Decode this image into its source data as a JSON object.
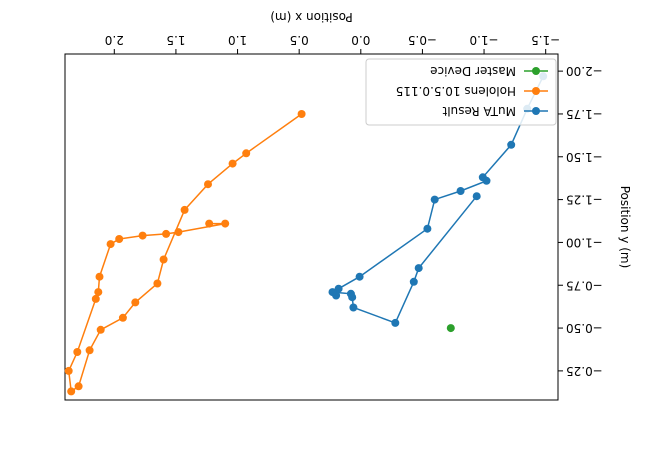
{
  "chart_data": {
    "type": "scatter",
    "title": "",
    "xlabel": "Position x (m)",
    "ylabel": "Position y (m)",
    "rotated_180": true,
    "xlim": [
      -1.6,
      2.4
    ],
    "ylim": [
      -2.1,
      -0.08
    ],
    "x_ticks": [
      -1.5,
      -1.0,
      -0.5,
      0.0,
      0.5,
      1.0,
      1.5,
      2.0
    ],
    "x_tick_labels": [
      "−1.5",
      "−1.0",
      "−0.5",
      "0.0",
      "0.5",
      "1.0",
      "1.5",
      "2.0"
    ],
    "y_ticks": [
      -2.0,
      -1.75,
      -1.5,
      -1.25,
      -1.0,
      -0.75,
      -0.5,
      -0.25
    ],
    "y_tick_labels": [
      "−2.00",
      "−1.75",
      "−1.50",
      "−1.25",
      "−1.00",
      "−0.75",
      "−0.50",
      "−0.25"
    ],
    "grid": false,
    "legend_position": "bottom-left",
    "series": [
      {
        "name": "MuTA Result",
        "color": "#1f77b4",
        "marker": "circle",
        "line": true,
        "points": [
          [
            -1.48,
            -1.97
          ],
          [
            -1.35,
            -1.78
          ],
          [
            -1.22,
            -1.57
          ],
          [
            -0.99,
            -1.38
          ],
          [
            -1.02,
            -1.36
          ],
          [
            -0.81,
            -1.3
          ],
          [
            -0.6,
            -1.25
          ],
          [
            -0.54,
            -1.08
          ],
          [
            0.01,
            -0.8
          ],
          [
            0.18,
            -0.73
          ],
          [
            0.2,
            -0.69
          ],
          [
            0.23,
            -0.71
          ],
          [
            0.08,
            -0.7
          ],
          [
            0.07,
            -0.68
          ],
          [
            0.06,
            -0.62
          ],
          [
            -0.28,
            -0.53
          ],
          [
            -0.43,
            -0.77
          ],
          [
            -0.47,
            -0.85
          ],
          [
            -0.94,
            -1.27
          ]
        ]
      },
      {
        "name": "Hololens 10.5.0.115",
        "color": "#ff7f0e",
        "marker": "circle",
        "line": true,
        "points": [
          [
            0.48,
            -1.75
          ],
          [
            0.93,
            -1.52
          ],
          [
            1.04,
            -1.46
          ],
          [
            1.24,
            -1.34
          ],
          [
            1.43,
            -1.19
          ],
          [
            1.6,
            -0.9
          ],
          [
            1.65,
            -0.76
          ],
          [
            1.83,
            -0.65
          ],
          [
            1.93,
            -0.56
          ],
          [
            2.11,
            -0.49
          ],
          [
            2.2,
            -0.37
          ],
          [
            2.29,
            -0.16
          ],
          [
            2.35,
            -0.13
          ],
          [
            2.37,
            -0.25
          ],
          [
            2.3,
            -0.36
          ],
          [
            2.15,
            -0.67
          ],
          [
            2.13,
            -0.71
          ],
          [
            2.12,
            -0.8
          ],
          [
            2.03,
            -0.99
          ],
          [
            1.96,
            -1.02
          ],
          [
            1.77,
            -1.04
          ],
          [
            1.58,
            -1.05
          ],
          [
            1.48,
            -1.06
          ],
          [
            1.1,
            -1.11
          ],
          [
            1.23,
            -1.11
          ]
        ]
      },
      {
        "name": "Master Device",
        "color": "#2ca02c",
        "marker": "circle",
        "line": false,
        "points": [
          [
            -0.73,
            -0.5
          ]
        ]
      }
    ]
  }
}
